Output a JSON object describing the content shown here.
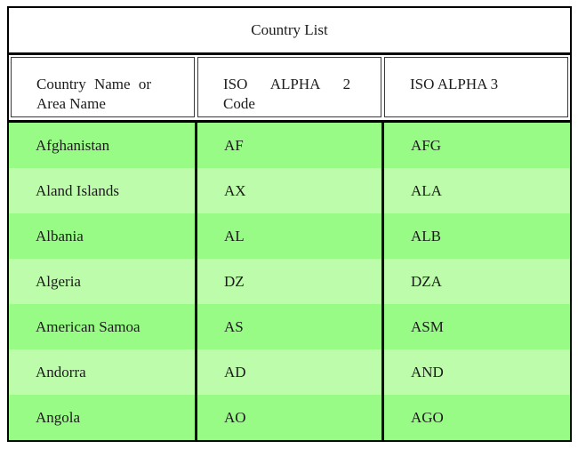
{
  "table": {
    "title": "Country List",
    "columns": [
      {
        "line1": "Country Name or",
        "line2": "Area Name"
      },
      {
        "line1": "ISO ALPHA 2",
        "line2": "Code"
      },
      {
        "line1": "ISO ALPHA 3",
        "line2": ""
      }
    ],
    "rows": [
      {
        "name": "Afghanistan",
        "alpha2": "AF",
        "alpha3": "AFG"
      },
      {
        "name": "Aland Islands",
        "alpha2": "AX",
        "alpha3": "ALA"
      },
      {
        "name": "Albania",
        "alpha2": "AL",
        "alpha3": "ALB"
      },
      {
        "name": "Algeria",
        "alpha2": "DZ",
        "alpha3": "DZA"
      },
      {
        "name": "American Samoa",
        "alpha2": "AS",
        "alpha3": "ASM"
      },
      {
        "name": "Andorra",
        "alpha2": "AD",
        "alpha3": "AND"
      },
      {
        "name": "Angola",
        "alpha2": "AO",
        "alpha3": "AGO"
      }
    ]
  },
  "colors": {
    "row_green_dark": "#98fb86",
    "row_green_light": "#bdfcab",
    "border_black": "#000000",
    "header_bg": "#ffffff",
    "text": "#1b1b1b"
  }
}
